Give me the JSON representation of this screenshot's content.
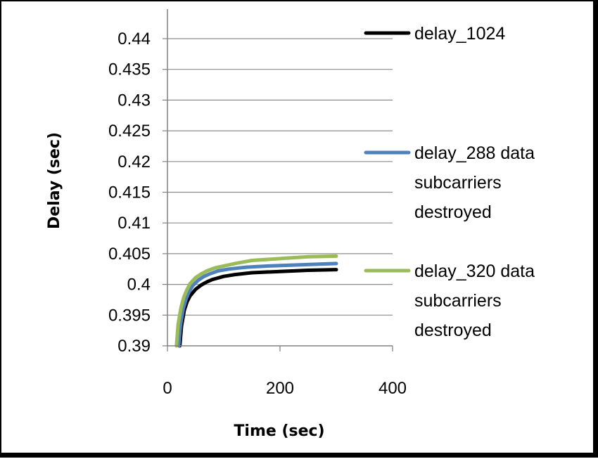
{
  "chart_data": {
    "type": "line",
    "xlabel": "Time (sec)",
    "ylabel": "Delay (sec)",
    "xlim": [
      0,
      400
    ],
    "ylim": [
      0.39,
      0.44
    ],
    "xticks": [
      "0",
      "200",
      "400"
    ],
    "yticks": [
      "0.39",
      "0.395",
      "0.4",
      "0.405",
      "0.41",
      "0.415",
      "0.42",
      "0.425",
      "0.43",
      "0.435",
      "0.44"
    ],
    "grid": "horizontal",
    "legend_position": "right",
    "series": [
      {
        "name": "delay_1024",
        "legend_lines": [
          "delay_1024"
        ],
        "color": "#000000",
        "x": [
          22,
          25,
          30,
          35,
          40,
          50,
          60,
          70,
          80,
          100,
          120,
          150,
          200,
          250,
          300
        ],
        "y": [
          0.39,
          0.3932,
          0.3958,
          0.3972,
          0.3981,
          0.3992,
          0.3999,
          0.4004,
          0.4008,
          0.4013,
          0.4016,
          0.4019,
          0.4021,
          0.4023,
          0.4024
        ]
      },
      {
        "name": "delay_288 data subcarriers destroyed",
        "legend_lines": [
          "delay_288 data",
          "subcarriers",
          "destroyed"
        ],
        "color": "#4F81BD",
        "x": [
          20,
          23,
          28,
          33,
          38,
          45,
          55,
          65,
          75,
          90,
          110,
          140,
          180,
          240,
          300
        ],
        "y": [
          0.39,
          0.3933,
          0.396,
          0.3976,
          0.3987,
          0.3998,
          0.4007,
          0.4013,
          0.4017,
          0.4022,
          0.4025,
          0.4028,
          0.403,
          0.4032,
          0.4034
        ]
      },
      {
        "name": "delay_320 data subcarriers destroyed",
        "legend_lines": [
          "delay_320 data",
          "subcarriers",
          "destroyed"
        ],
        "color": "#9BBB59",
        "x": [
          16,
          19,
          24,
          29,
          34,
          40,
          50,
          60,
          70,
          85,
          100,
          120,
          150,
          200,
          250,
          300
        ],
        "y": [
          0.39,
          0.3935,
          0.3962,
          0.3979,
          0.399,
          0.4001,
          0.4011,
          0.4017,
          0.4022,
          0.4027,
          0.403,
          0.4034,
          0.4039,
          0.4042,
          0.4045,
          0.4046
        ]
      }
    ]
  }
}
